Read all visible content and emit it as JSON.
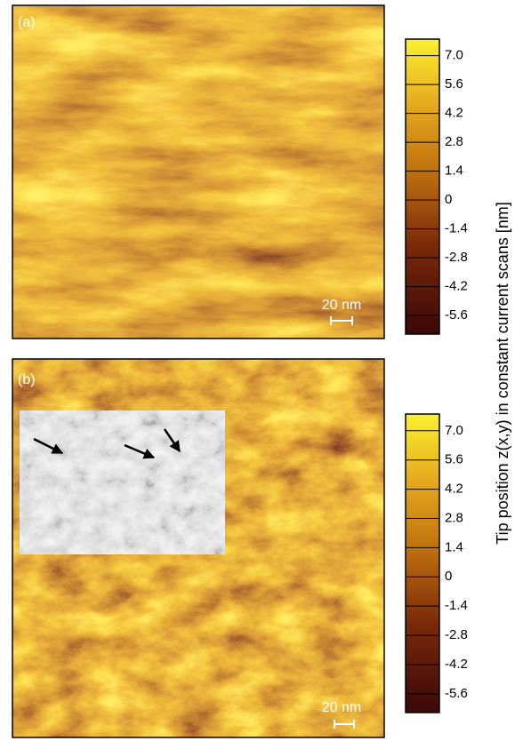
{
  "panels": [
    {
      "label": "(a)",
      "scale_bar": "20 nm",
      "colorbar": {
        "clim": [
          -6.5,
          7.8
        ],
        "ticks": [
          {
            "value": 7,
            "label": "7.0"
          },
          5.6,
          4.2,
          2.8,
          1.4,
          0,
          -1.4,
          -2.8,
          -4.2,
          -5.6
        ]
      }
    },
    {
      "label": "(b)",
      "scale_bar": "20 nm",
      "colorbar": {
        "clim": [
          -6.5,
          7.8
        ],
        "ticks": [
          {
            "value": 7,
            "label": "7.0"
          },
          5.6,
          4.2,
          2.8,
          1.4,
          0,
          -1.4,
          -2.8,
          -4.2,
          -5.6
        ]
      }
    }
  ],
  "colorbar_label": "Tip position z(x,y) in constant current scans [nm]"
}
